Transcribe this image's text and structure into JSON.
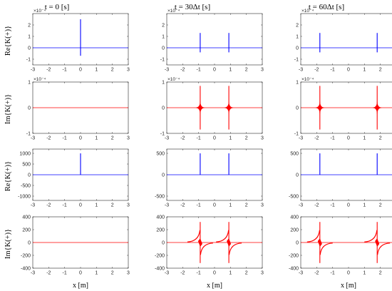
{
  "figure": {
    "column_titles": [
      "t = 0 [s]",
      "t = 30Δt [s]",
      "t = 60Δt [s]"
    ],
    "xlabel": "x [m]",
    "row_ylabels": [
      "Re{Κ(+)}",
      "Im{Κ(+)}",
      "Re{K(+)}",
      "Im{K(+)}"
    ]
  },
  "colors": {
    "real": "#0000ff",
    "imag": "#ff0000",
    "axis": "#262626"
  },
  "chart_data": [
    {
      "type": "line",
      "row": 0,
      "col": 0,
      "title": "t = 0 [s]",
      "ylabel": "Re{Κ(+)}",
      "xlabel": "",
      "exponent": "×10⁻⁴",
      "xlim": [
        -3,
        3
      ],
      "ylim": [
        -1.5,
        3
      ],
      "xticks": [
        -3,
        -2,
        -1,
        0,
        1,
        2,
        3
      ],
      "yticks": [
        -1,
        0,
        1,
        2
      ],
      "series": [
        {
          "color": "#0000ff",
          "spikes": [
            {
              "x": 0,
              "top": 2.5,
              "bottom": -0.7
            }
          ],
          "feature": "none"
        }
      ]
    },
    {
      "type": "line",
      "row": 0,
      "col": 1,
      "title": "t = 30Δt [s]",
      "ylabel": "",
      "xlabel": "",
      "exponent": "×10⁻⁴",
      "xlim": [
        -3,
        3
      ],
      "ylim": [
        -1.5,
        3
      ],
      "xticks": [
        -3,
        -2,
        -1,
        0,
        1,
        2,
        3
      ],
      "yticks": [
        -1,
        0,
        1,
        2
      ],
      "series": [
        {
          "color": "#0000ff",
          "spikes": [
            {
              "x": -0.9,
              "top": 1.3,
              "bottom": -0.4
            },
            {
              "x": 0.9,
              "top": 1.3,
              "bottom": -0.4
            }
          ],
          "feature": "none"
        }
      ]
    },
    {
      "type": "line",
      "row": 0,
      "col": 2,
      "title": "t = 60Δt [s]",
      "ylabel": "",
      "xlabel": "",
      "exponent": "×10⁻⁴",
      "xlim": [
        -3,
        3
      ],
      "ylim": [
        -1.5,
        3
      ],
      "xticks": [
        -3,
        -2,
        -1,
        0,
        1,
        2,
        3
      ],
      "yticks": [
        -1,
        0,
        1,
        2
      ],
      "series": [
        {
          "color": "#0000ff",
          "spikes": [
            {
              "x": -1.8,
              "top": 1.3,
              "bottom": -0.4
            },
            {
              "x": 1.8,
              "top": 1.3,
              "bottom": -0.4
            }
          ],
          "feature": "none"
        }
      ]
    },
    {
      "type": "line",
      "row": 1,
      "col": 0,
      "title": "",
      "ylabel": "Im{Κ(+)}",
      "xlabel": "",
      "exponent": "×10⁻⁴",
      "xlim": [
        -3,
        3
      ],
      "ylim": [
        -1,
        1
      ],
      "xticks": [
        -3,
        -2,
        -1,
        0,
        1,
        2,
        3
      ],
      "yticks": [
        -1,
        0,
        1
      ],
      "series": [
        {
          "color": "#ff0000",
          "spikes": [],
          "feature": "none"
        }
      ]
    },
    {
      "type": "line",
      "row": 1,
      "col": 1,
      "title": "",
      "ylabel": "",
      "xlabel": "",
      "exponent": "×10⁻⁴",
      "xlim": [
        -3,
        3
      ],
      "ylim": [
        -1,
        1
      ],
      "xticks": [
        -3,
        -2,
        -1,
        0,
        1,
        2,
        3
      ],
      "yticks": [
        -1,
        0,
        1
      ],
      "series": [
        {
          "color": "#ff0000",
          "spikes": [
            {
              "x": -0.9,
              "top": 0.85,
              "bottom": -0.85
            },
            {
              "x": 0.9,
              "top": 0.85,
              "bottom": -0.85
            }
          ],
          "feature": "star"
        }
      ]
    },
    {
      "type": "line",
      "row": 1,
      "col": 2,
      "title": "",
      "ylabel": "",
      "xlabel": "",
      "exponent": "×10⁻⁴",
      "xlim": [
        -3,
        3
      ],
      "ylim": [
        -1,
        1
      ],
      "xticks": [
        -3,
        -2,
        -1,
        0,
        1,
        2,
        3
      ],
      "yticks": [
        -1,
        0,
        1
      ],
      "series": [
        {
          "color": "#ff0000",
          "spikes": [
            {
              "x": -1.8,
              "top": 0.85,
              "bottom": -0.85
            },
            {
              "x": 1.8,
              "top": 0.85,
              "bottom": -0.85
            }
          ],
          "feature": "star"
        }
      ]
    },
    {
      "type": "line",
      "row": 2,
      "col": 0,
      "title": "",
      "ylabel": "Re{K(+)}",
      "xlabel": "",
      "exponent": "",
      "xlim": [
        -3,
        3
      ],
      "ylim": [
        -1200,
        1200
      ],
      "xticks": [
        -3,
        -2,
        -1,
        0,
        1,
        2,
        3
      ],
      "yticks": [
        -1000,
        -500,
        0,
        500,
        1000
      ],
      "series": [
        {
          "color": "#0000ff",
          "spikes": [
            {
              "x": 0,
              "top": 1000,
              "bottom": 0
            }
          ],
          "feature": "none"
        }
      ]
    },
    {
      "type": "line",
      "row": 2,
      "col": 1,
      "title": "",
      "ylabel": "",
      "xlabel": "",
      "exponent": "",
      "xlim": [
        -3,
        3
      ],
      "ylim": [
        -600,
        600
      ],
      "xticks": [
        -3,
        -2,
        -1,
        0,
        1,
        2,
        3
      ],
      "yticks": [
        -500,
        0,
        500
      ],
      "series": [
        {
          "color": "#0000ff",
          "spikes": [
            {
              "x": -0.9,
              "top": 500,
              "bottom": 0
            },
            {
              "x": 0.9,
              "top": 500,
              "bottom": 0
            }
          ],
          "feature": "none"
        }
      ]
    },
    {
      "type": "line",
      "row": 2,
      "col": 2,
      "title": "",
      "ylabel": "",
      "xlabel": "",
      "exponent": "",
      "xlim": [
        -3,
        3
      ],
      "ylim": [
        -600,
        600
      ],
      "xticks": [
        -3,
        -2,
        -1,
        0,
        1,
        2,
        3
      ],
      "yticks": [
        -500,
        0,
        500
      ],
      "series": [
        {
          "color": "#0000ff",
          "spikes": [
            {
              "x": -1.8,
              "top": 500,
              "bottom": 0
            },
            {
              "x": 1.8,
              "top": 500,
              "bottom": 0
            }
          ],
          "feature": "none"
        }
      ]
    },
    {
      "type": "line",
      "row": 3,
      "col": 0,
      "title": "",
      "ylabel": "Im{K(+)}",
      "xlabel": "x [m]",
      "exponent": "",
      "xlim": [
        -3,
        3
      ],
      "ylim": [
        -400,
        400
      ],
      "xticks": [
        -3,
        -2,
        -1,
        0,
        1,
        2,
        3
      ],
      "yticks": [
        -400,
        -200,
        0,
        200,
        400
      ],
      "series": [
        {
          "color": "#ff0000",
          "spikes": [],
          "feature": "none"
        }
      ]
    },
    {
      "type": "line",
      "row": 3,
      "col": 1,
      "title": "",
      "ylabel": "",
      "xlabel": "x [m]",
      "exponent": "",
      "xlim": [
        -3,
        3
      ],
      "ylim": [
        -400,
        400
      ],
      "xticks": [
        -3,
        -2,
        -1,
        0,
        1,
        2,
        3
      ],
      "yticks": [
        -400,
        -200,
        0,
        200,
        400
      ],
      "series": [
        {
          "color": "#ff0000",
          "spikes": [
            {
              "x": -0.9,
              "top": 320,
              "bottom": -320
            },
            {
              "x": 0.9,
              "top": 320,
              "bottom": -320
            }
          ],
          "feature": "hyperbola"
        }
      ]
    },
    {
      "type": "line",
      "row": 3,
      "col": 2,
      "title": "",
      "ylabel": "",
      "xlabel": "x [m]",
      "exponent": "",
      "xlim": [
        -3,
        3
      ],
      "ylim": [
        -400,
        400
      ],
      "xticks": [
        -3,
        -2,
        -1,
        0,
        1,
        2,
        3
      ],
      "yticks": [
        -400,
        -200,
        0,
        200,
        400
      ],
      "series": [
        {
          "color": "#ff0000",
          "spikes": [
            {
              "x": -1.8,
              "top": 320,
              "bottom": -320
            },
            {
              "x": 1.8,
              "top": 320,
              "bottom": -320
            }
          ],
          "feature": "hyperbola"
        }
      ]
    }
  ]
}
